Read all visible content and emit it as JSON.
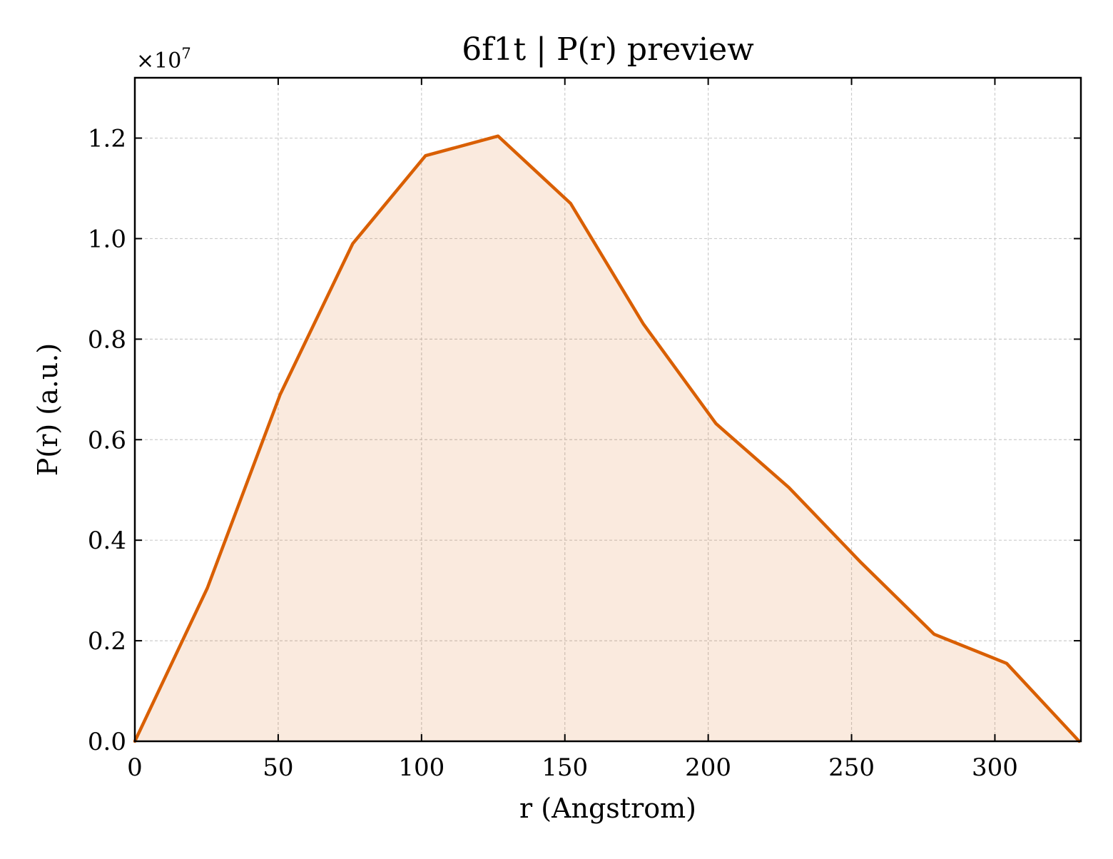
{
  "chart_data": {
    "type": "area",
    "title": "6f1t | P(r) preview",
    "xlabel": "r (Angstrom)",
    "ylabel": "P(r) (a.u.)",
    "y_offset_label": "×10",
    "y_offset_exponent": "7",
    "xlim": [
      0,
      330
    ],
    "ylim": [
      0,
      13200000.0
    ],
    "xticks": [
      0,
      50,
      100,
      150,
      200,
      250,
      300
    ],
    "xtick_labels": [
      "0",
      "50",
      "100",
      "150",
      "200",
      "250",
      "300"
    ],
    "yticks": [
      0,
      2000000,
      4000000,
      6000000,
      8000000,
      10000000,
      12000000
    ],
    "ytick_labels": [
      "0.0",
      "0.2",
      "0.4",
      "0.6",
      "0.8",
      "1.0",
      "1.2"
    ],
    "grid": true,
    "series": [
      {
        "color": "#d95f02",
        "fill_color": "#d95f02",
        "fill_opacity": 0.13,
        "x": [
          0,
          25.3,
          50.7,
          76.0,
          101.4,
          126.7,
          152.0,
          177.4,
          202.7,
          228.1,
          253.4,
          278.8,
          304.1,
          329.4
        ],
        "y": [
          0,
          3050000,
          6900000,
          9900000,
          11650000,
          12040000,
          10700000,
          8300000,
          6320000,
          5050000,
          3550000,
          2130000,
          1550000,
          0
        ]
      }
    ]
  }
}
